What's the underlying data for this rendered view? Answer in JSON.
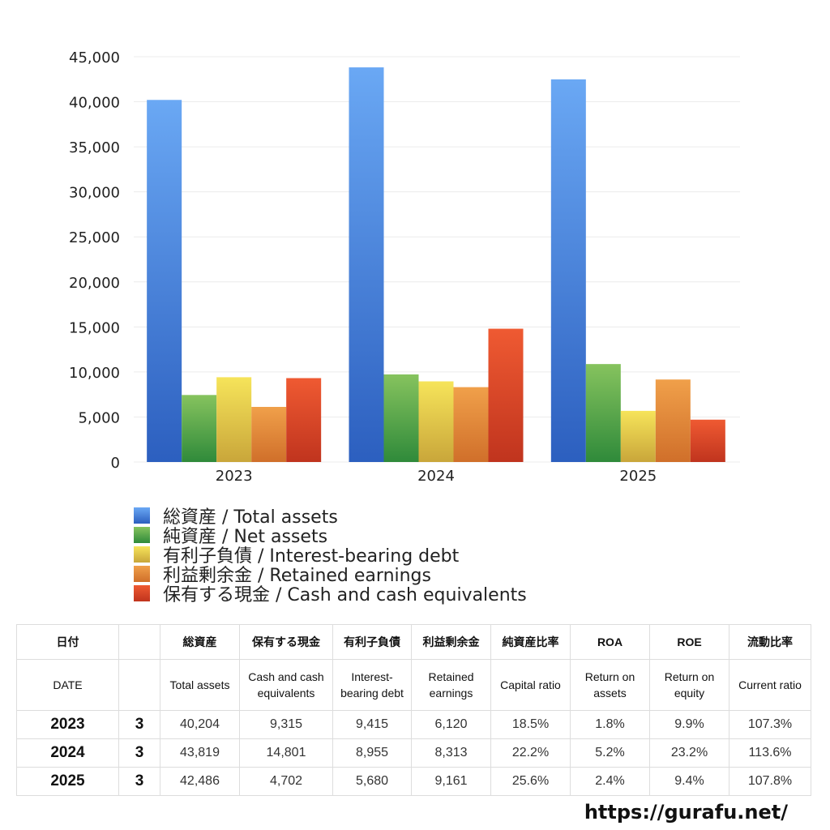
{
  "chart_data": {
    "type": "bar",
    "categories": [
      "2023",
      "2024",
      "2025"
    ],
    "ylim": [
      0,
      45000
    ],
    "yticks": [
      0,
      5000,
      10000,
      15000,
      20000,
      25000,
      30000,
      35000,
      40000,
      45000
    ],
    "ytick_labels": [
      "0",
      "5,000",
      "10,000",
      "15,000",
      "20,000",
      "25,000",
      "30,000",
      "35,000",
      "40,000",
      "45,000"
    ],
    "grid": true,
    "legend_position": "bottom-left",
    "series": [
      {
        "name": "総資産 / Total assets",
        "values": [
          40204,
          43819,
          42486
        ],
        "color_top": "#6aa8f4",
        "color_bottom": "#2c5fbf"
      },
      {
        "name": "純資産 / Net assets",
        "values": [
          7442,
          9728,
          10877
        ],
        "color_top": "#86c35e",
        "color_bottom": "#2f8a3a"
      },
      {
        "name": "有利子負債 / Interest-bearing debt",
        "values": [
          9415,
          8955,
          5680
        ],
        "color_top": "#f6e45a",
        "color_bottom": "#c9a63a"
      },
      {
        "name": "利益剰余金 / Retained earnings",
        "values": [
          6120,
          8313,
          9161
        ],
        "color_top": "#f0a04a",
        "color_bottom": "#d06f2a"
      },
      {
        "name": "保有する現金 /  Cash and cash equivalents",
        "values": [
          9315,
          14801,
          4702
        ],
        "color_top": "#ef5a32",
        "color_bottom": "#c0341e"
      }
    ]
  },
  "table": {
    "headers_ja": [
      "日付",
      "",
      "総資産",
      "保有する現金",
      "有利子負債",
      "利益剰余金",
      "純資産比率",
      "ROA",
      "ROE",
      "流動比率"
    ],
    "headers_en": [
      "DATE",
      "",
      "Total assets",
      "Cash and cash equivalents",
      "Interest-bearing debt",
      "Retained earnings",
      "Capital ratio",
      "Return on assets",
      "Return on equity",
      "Current ratio"
    ],
    "rows": [
      [
        "2023",
        "3",
        "40,204",
        "9,315",
        "9,415",
        "6,120",
        "18.5%",
        "1.8%",
        "9.9%",
        "107.3%"
      ],
      [
        "2024",
        "3",
        "43,819",
        "14,801",
        "8,955",
        "8,313",
        "22.2%",
        "5.2%",
        "23.2%",
        "113.6%"
      ],
      [
        "2025",
        "3",
        "42,486",
        "4,702",
        "5,680",
        "9,161",
        "25.6%",
        "2.4%",
        "9.4%",
        "107.8%"
      ]
    ]
  },
  "footer": {
    "url": "https://gurafu.net/"
  }
}
